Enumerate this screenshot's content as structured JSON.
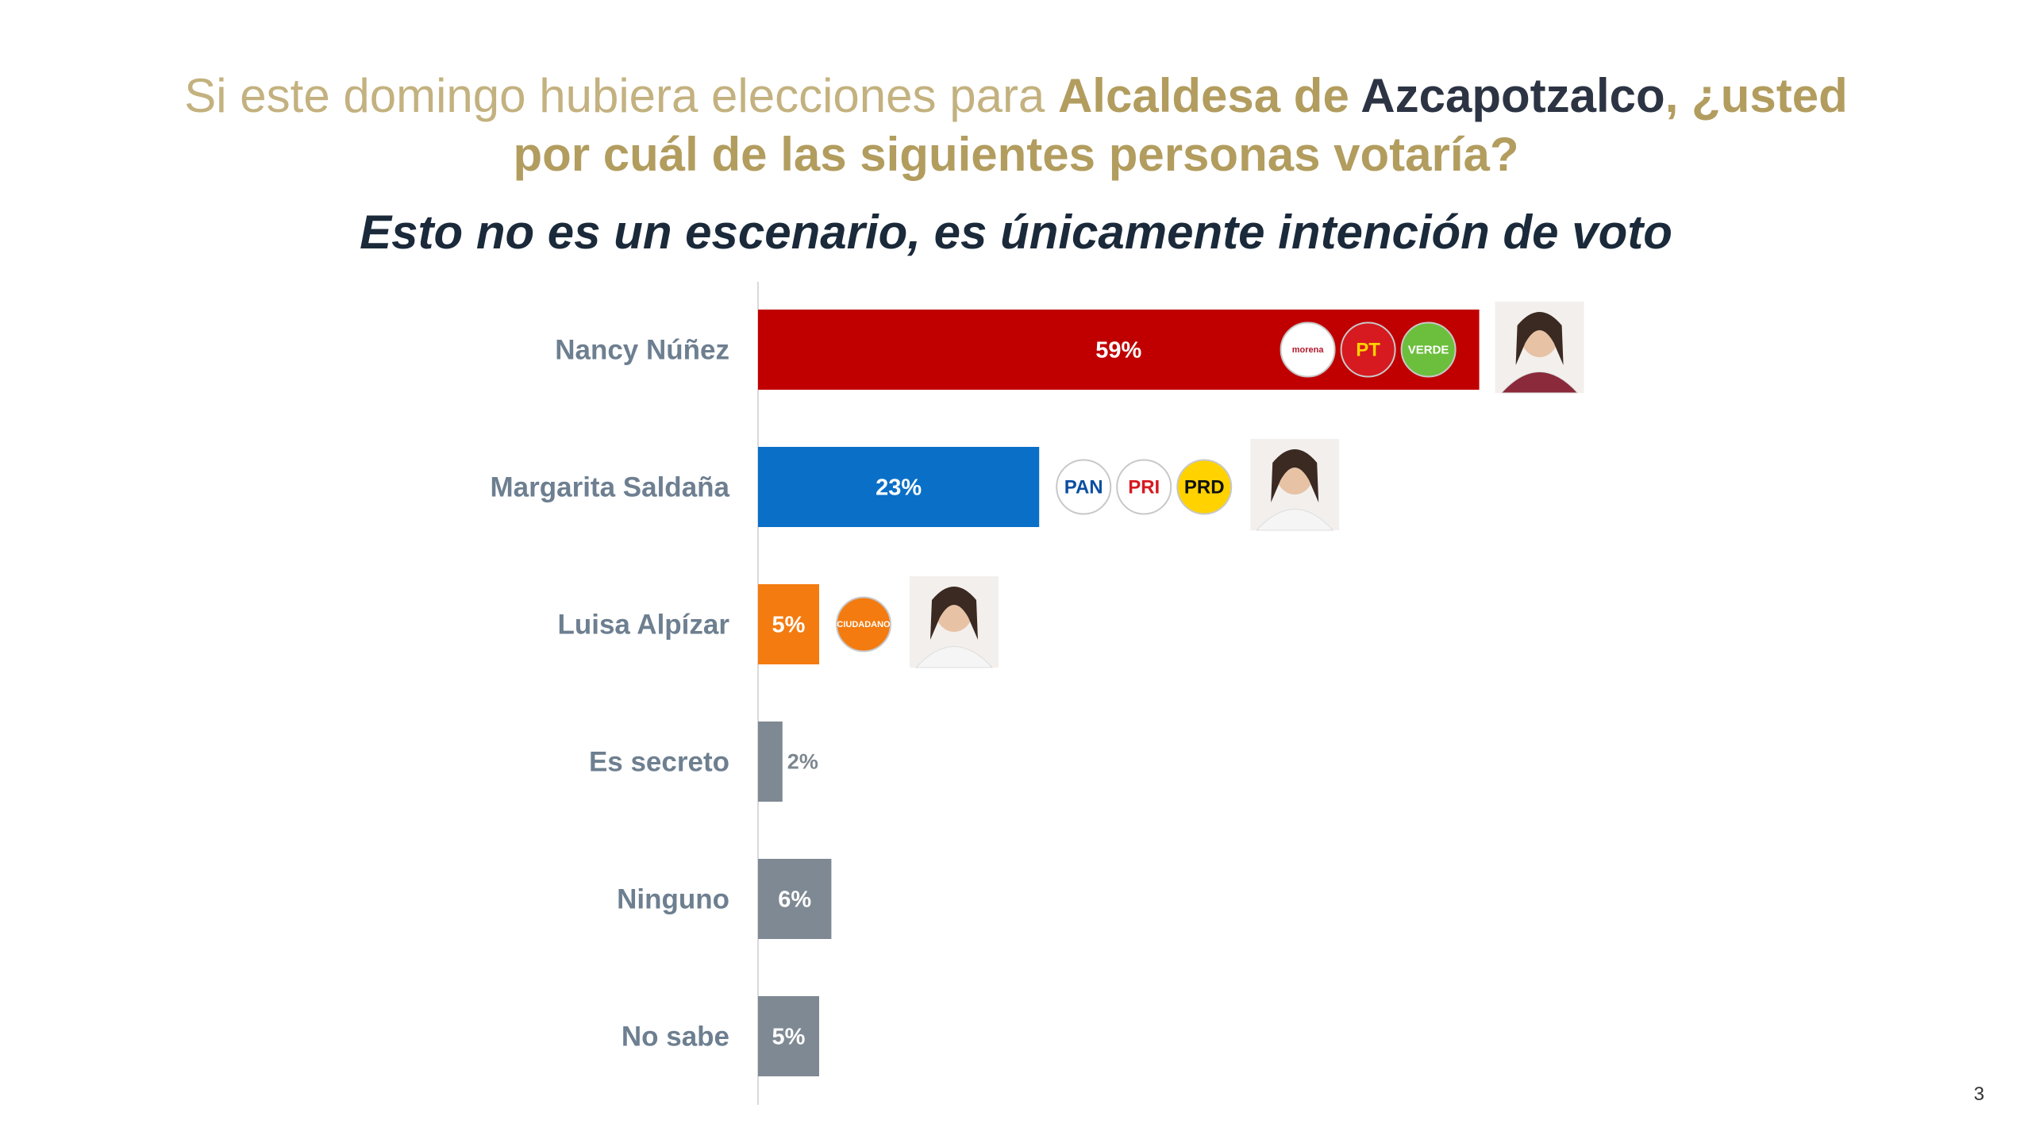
{
  "header": {
    "title_part1": "Si este domingo hubiera elecciones para ",
    "title_part2": "Alcaldesa de ",
    "title_part3": "Azcapotzalco",
    "title_part4": ", ¿usted",
    "title_line2": "por cuál de las siguientes personas votaría?",
    "subtitle": "Esto no es un escenario, es únicamente intención de voto"
  },
  "page_number": "3",
  "chart_data": {
    "type": "bar",
    "orientation": "horizontal",
    "title": "",
    "xlabel": "",
    "ylabel": "",
    "xlim": [
      0,
      100
    ],
    "grid": false,
    "categories": [
      "Nancy Núñez",
      "Margarita Saldaña",
      "Luisa Alpízar",
      "Es secreto",
      "Ninguno",
      "No sabe"
    ],
    "values": [
      59,
      23,
      5,
      2,
      6,
      5
    ],
    "value_labels": [
      "59%",
      "23%",
      "5%",
      "2%",
      "6%",
      "5%"
    ],
    "colors": [
      "#c00000",
      "#0a6fc7",
      "#f47b0f",
      "#7f8993",
      "#7f8993",
      "#7f8993"
    ],
    "party_logos": [
      [
        {
          "name": "morena-logo",
          "text": "morena",
          "bg": "#ffffff",
          "fg": "#b2182b"
        },
        {
          "name": "pt-logo",
          "text": "PT",
          "bg": "#d71920",
          "fg": "#ffd200"
        },
        {
          "name": "verde-logo",
          "text": "VERDE",
          "bg": "#6cbf3c",
          "fg": "#ffffff"
        }
      ],
      [
        {
          "name": "pan-logo",
          "text": "PAN",
          "bg": "#ffffff",
          "fg": "#0b4ea2"
        },
        {
          "name": "pri-logo",
          "text": "PRI",
          "bg": "#ffffff",
          "fg": "#d71920"
        },
        {
          "name": "prd-logo",
          "text": "PRD",
          "bg": "#ffd200",
          "fg": "#111111"
        }
      ],
      [
        {
          "name": "movimiento-ciudadano-logo",
          "text": "CIUDADANO",
          "bg": "#f47b0f",
          "fg": "#ffffff"
        }
      ],
      [],
      [],
      []
    ],
    "has_photo": [
      true,
      true,
      true,
      false,
      false,
      false
    ]
  }
}
